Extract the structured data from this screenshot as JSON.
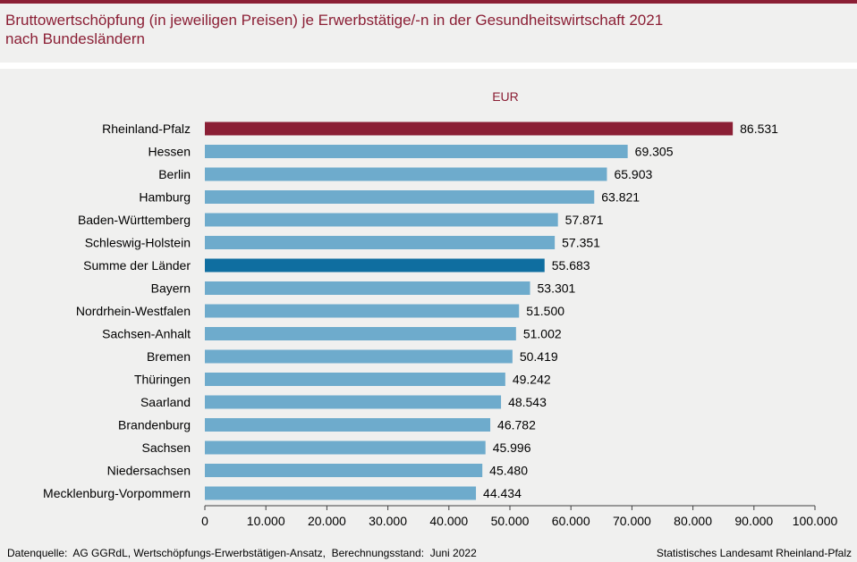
{
  "header": {
    "title_line1": "Bruttowertschöpfung (in jeweiligen Preisen) je Erwerbstätige/-n in der Gesundheitswirtschaft 2021",
    "title_line2": "nach Bundesländern"
  },
  "colors": {
    "accent": "#8b1f35",
    "bar": "#6eabcc",
    "highlight_total": "#0f6ea0",
    "background": "#f0f0ef"
  },
  "chart_data": {
    "type": "bar",
    "orientation": "horizontal",
    "unit_label": "EUR",
    "categories": [
      "Rheinland-Pfalz",
      "Hessen",
      "Berlin",
      "Hamburg",
      "Baden-Württemberg",
      "Schleswig-Holstein",
      "Summe der Länder",
      "Bayern",
      "Nordrhein-Westfalen",
      "Sachsen-Anhalt",
      "Bremen",
      "Thüringen",
      "Saarland",
      "Brandenburg",
      "Sachsen",
      "Niedersachsen",
      "Mecklenburg-Vorpommern"
    ],
    "values": [
      86531,
      69305,
      65903,
      63821,
      57871,
      57351,
      55683,
      53301,
      51500,
      51002,
      50419,
      49242,
      48543,
      46782,
      45996,
      45480,
      44434
    ],
    "value_labels": [
      "86.531",
      "69.305",
      "65.903",
      "63.821",
      "57.871",
      "57.351",
      "55.683",
      "53.301",
      "51.500",
      "51.002",
      "50.419",
      "49.242",
      "48.543",
      "46.782",
      "45.996",
      "45.480",
      "44.434"
    ],
    "highlight": {
      "Rheinland-Pfalz": "accent",
      "Summe der Länder": "total"
    },
    "xlim": [
      0,
      100000
    ],
    "xticks": [
      0,
      10000,
      20000,
      30000,
      40000,
      50000,
      60000,
      70000,
      80000,
      90000,
      100000
    ],
    "xtick_labels": [
      "0",
      "10.000",
      "20.000",
      "30.000",
      "40.000",
      "50.000",
      "60.000",
      "70.000",
      "80.000",
      "90.000",
      "100.000"
    ],
    "legend": "none",
    "grid": false
  },
  "footer": {
    "source": "Datenquelle:  AG GGRdL, Wertschöpfungs-Erwerbstätigen-Ansatz,  Berechnungsstand:  Juni 2022",
    "publisher": "Statistisches Landesamt Rheinland-Pfalz"
  }
}
